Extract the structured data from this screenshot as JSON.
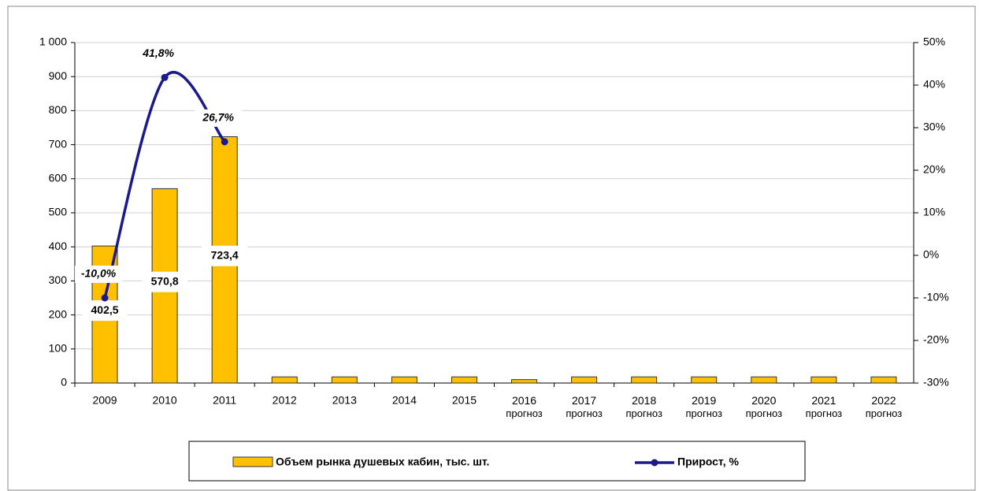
{
  "chart_data": {
    "type": "bar_line",
    "categories": [
      "2009",
      "2010",
      "2011",
      "2012",
      "2013",
      "2014",
      "2015",
      "2016\nпрогноз",
      "2017\nпрогноз",
      "2018\nпрогноз",
      "2019\nпрогноз",
      "2020\nпрогноз",
      "2021\nпрогноз",
      "2022\nпрогноз"
    ],
    "series": [
      {
        "name": "Объем рынка душевых кабин, тыс. шт.",
        "type": "bar",
        "color": "#ffc000",
        "values": [
          402.5,
          570.8,
          723.4,
          18,
          18,
          18,
          18,
          10,
          18,
          18,
          18,
          18,
          18,
          18
        ],
        "value_labels": [
          "402,5",
          "570,8",
          "723,4",
          null,
          null,
          null,
          null,
          null,
          null,
          null,
          null,
          null,
          null,
          null
        ]
      },
      {
        "name": "Прирост, %",
        "type": "line",
        "axis": "y2",
        "color": "#1a1a8c",
        "values": [
          -10.0,
          41.8,
          26.7,
          null,
          null,
          null,
          null,
          null,
          null,
          null,
          null,
          null,
          null,
          null
        ],
        "value_labels": [
          "-10,0%",
          "41,8%",
          "26,7%",
          null,
          null,
          null,
          null,
          null,
          null,
          null,
          null,
          null,
          null,
          null
        ]
      }
    ],
    "ylim": [
      0,
      1000
    ],
    "yticks": [
      0,
      100,
      200,
      300,
      400,
      500,
      600,
      700,
      800,
      900,
      {
        "value": 1000,
        "label": "1 000"
      }
    ],
    "y2lim": [
      -30,
      50
    ],
    "y2ticks": [
      {
        "value": -30,
        "label": "-30%"
      },
      {
        "value": -20,
        "label": "-20%"
      },
      {
        "value": -10,
        "label": "-10%"
      },
      {
        "value": 0,
        "label": "0%"
      },
      {
        "value": 10,
        "label": "10%"
      },
      {
        "value": 20,
        "label": "20%"
      },
      {
        "value": 30,
        "label": "30%"
      },
      {
        "value": 40,
        "label": "40%"
      },
      {
        "value": 50,
        "label": "50%"
      }
    ],
    "grid": true,
    "legend": "bottom"
  }
}
